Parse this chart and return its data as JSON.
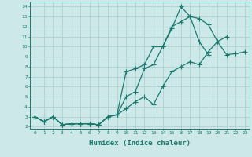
{
  "line1_x": [
    0,
    1,
    2,
    3,
    4,
    5,
    6,
    7,
    8,
    9,
    10,
    11,
    12,
    13,
    14,
    15,
    16,
    17,
    18,
    19,
    20,
    21,
    22,
    23
  ],
  "line1_y": [
    3,
    2.5,
    3,
    2.2,
    2.3,
    2.3,
    2.3,
    2.2,
    3,
    3.2,
    5.0,
    5.5,
    7.8,
    8.2,
    10.0,
    11.8,
    14.0,
    13.0,
    12.8,
    12.2,
    10.5,
    9.2,
    9.3,
    9.5
  ],
  "line2_x": [
    0,
    1,
    2,
    3,
    4,
    5,
    6,
    7,
    8,
    9,
    10,
    11,
    12,
    13,
    14,
    15,
    16,
    17,
    18,
    19,
    20,
    21
  ],
  "line2_y": [
    3,
    2.5,
    3,
    2.2,
    2.3,
    2.3,
    2.3,
    2.2,
    3,
    3.2,
    7.5,
    7.8,
    8.2,
    10.0,
    10.0,
    12.0,
    12.5,
    13.0,
    10.5,
    9.2,
    null,
    null
  ],
  "line3_x": [
    0,
    1,
    2,
    3,
    4,
    5,
    6,
    7,
    8,
    9,
    10,
    11,
    12,
    13,
    14,
    15,
    16,
    17,
    18,
    19,
    20,
    21
  ],
  "line3_y": [
    3,
    2.5,
    3,
    2.2,
    2.3,
    2.3,
    2.3,
    2.2,
    3,
    3.2,
    3.8,
    4.5,
    5.0,
    4.2,
    6.0,
    7.5,
    8.0,
    8.5,
    8.2,
    9.5,
    10.5,
    11.0
  ],
  "color": "#1a7a6e",
  "bg_color": "#cce8e8",
  "grid_color": "#a8cccc",
  "xlabel": "Humidex (Indice chaleur)",
  "xlim": [
    -0.5,
    23.5
  ],
  "ylim": [
    1.8,
    14.5
  ],
  "xticks": [
    0,
    1,
    2,
    3,
    4,
    5,
    6,
    7,
    8,
    9,
    10,
    11,
    12,
    13,
    14,
    15,
    16,
    17,
    18,
    19,
    20,
    21,
    22,
    23
  ],
  "yticks": [
    2,
    3,
    4,
    5,
    6,
    7,
    8,
    9,
    10,
    11,
    12,
    13,
    14
  ],
  "markersize": 2.5,
  "linewidth": 0.9
}
